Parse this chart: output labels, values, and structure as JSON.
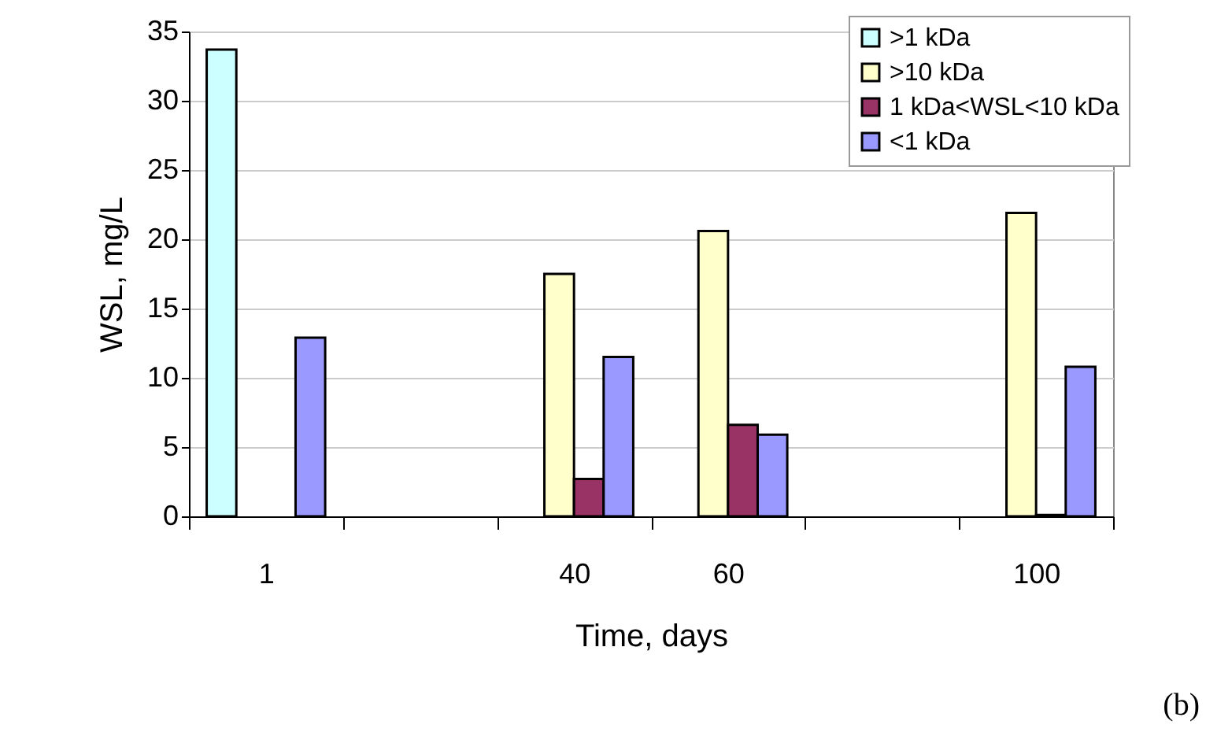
{
  "chart_data": {
    "type": "bar",
    "xlabel": "Time, days",
    "ylabel": "WSL, mg/L",
    "categories": [
      "1",
      null,
      "40",
      "60",
      null,
      "100"
    ],
    "series": [
      {
        "name": ">1 kDa",
        "color": "#ccffff",
        "values": [
          33.7,
          null,
          null,
          null,
          null,
          null
        ]
      },
      {
        "name": ">10 kDa",
        "color": "#ffffcc",
        "values": [
          null,
          null,
          17.5,
          20.6,
          null,
          21.9
        ]
      },
      {
        "name": "1 kDa<WSL<10 kDa",
        "color": "#993366",
        "values": [
          null,
          null,
          2.7,
          6.6,
          null,
          0.1
        ]
      },
      {
        "name": "<1 kDa",
        "color": "#9999ff",
        "values": [
          12.9,
          null,
          11.5,
          5.9,
          null,
          10.8
        ]
      }
    ],
    "ylim": [
      0,
      35
    ],
    "yticks": [
      0,
      5,
      10,
      15,
      20,
      25,
      30,
      35
    ],
    "grid": "y",
    "legend": "top right",
    "annotations": [
      "(b)"
    ]
  }
}
